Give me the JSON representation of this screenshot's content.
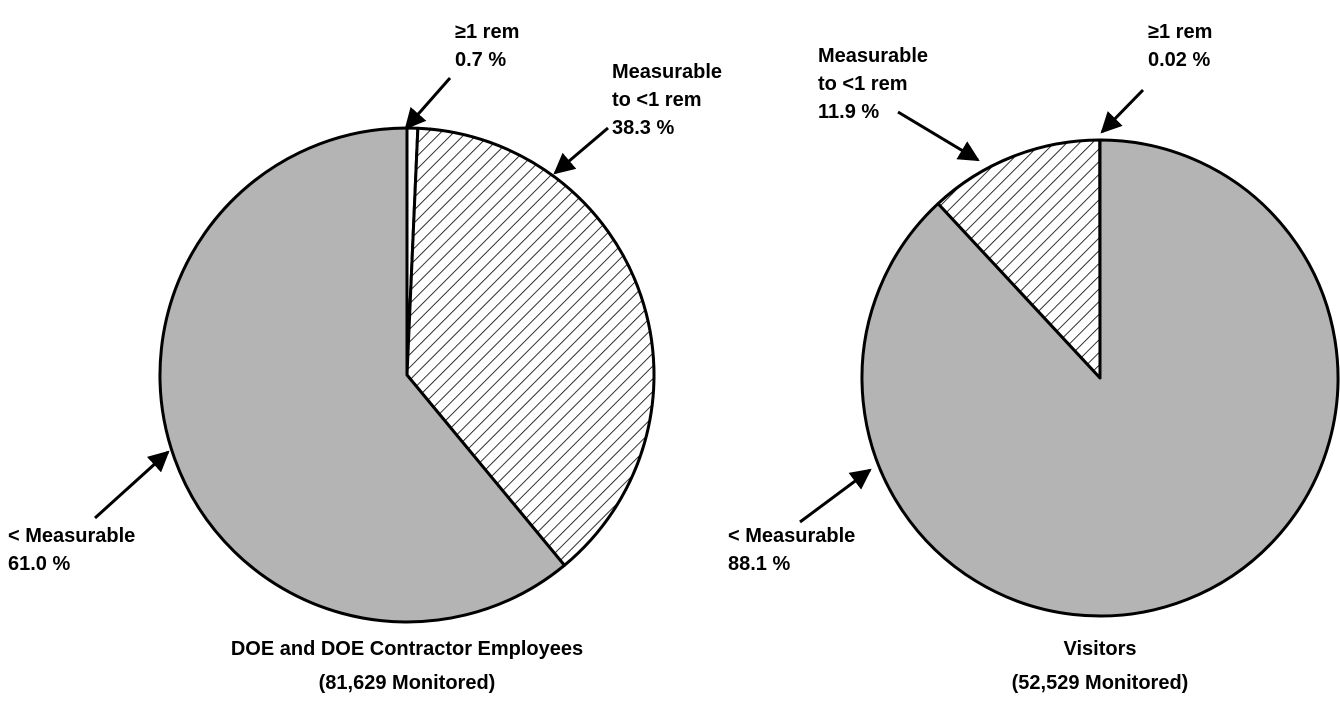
{
  "chart_data": [
    {
      "type": "pie",
      "title": "DOE and DOE Contractor Employees",
      "subtitle": "(81,629 Monitored)",
      "categories": [
        "≥1 rem",
        "Measurable to <1 rem",
        "< Measurable"
      ],
      "values": [
        0.7,
        38.3,
        61.0
      ],
      "value_labels": [
        "0.7 %",
        "38.3 %",
        "61.0 %"
      ],
      "colors": [
        "#ffffff",
        "#ffffff",
        "#b4b4b4"
      ],
      "hatched": [
        false,
        true,
        false
      ],
      "direction": "clockwise"
    },
    {
      "type": "pie",
      "title": "Visitors",
      "subtitle": "(52,529 Monitored)",
      "categories": [
        "≥1 rem",
        "Measurable to <1 rem",
        "< Measurable"
      ],
      "values": [
        0.02,
        11.9,
        88.1
      ],
      "value_labels": [
        "0.02 %",
        "11.9 %",
        "88.1 %"
      ],
      "colors": [
        "#ffffff",
        "#ffffff",
        "#b4b4b4"
      ],
      "hatched": [
        false,
        true,
        false
      ],
      "direction": "counterclockwise"
    }
  ]
}
